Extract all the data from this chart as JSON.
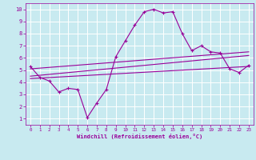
{
  "xlabel": "Windchill (Refroidissement éolien,°C)",
  "bg_color": "#c8eaf0",
  "grid_color": "#ffffff",
  "line_color": "#990099",
  "xlim": [
    -0.5,
    23.5
  ],
  "ylim": [
    0.5,
    10.5
  ],
  "xticks": [
    0,
    1,
    2,
    3,
    4,
    5,
    6,
    7,
    8,
    9,
    10,
    11,
    12,
    13,
    14,
    15,
    16,
    17,
    18,
    19,
    20,
    21,
    22,
    23
  ],
  "yticks": [
    1,
    2,
    3,
    4,
    5,
    6,
    7,
    8,
    9,
    10
  ],
  "series1_x": [
    0,
    1,
    2,
    3,
    4,
    5,
    6,
    7,
    8,
    9,
    10,
    11,
    12,
    13,
    14,
    15,
    16,
    17,
    18,
    19,
    20,
    21,
    22,
    23
  ],
  "series1_y": [
    5.3,
    4.4,
    4.1,
    3.2,
    3.5,
    3.4,
    1.1,
    2.3,
    3.4,
    6.1,
    7.4,
    8.7,
    9.8,
    10.0,
    9.7,
    9.8,
    8.0,
    6.6,
    7.0,
    6.5,
    6.4,
    5.1,
    4.8,
    5.4
  ],
  "series2_x": [
    0,
    23
  ],
  "series2_y": [
    5.1,
    6.5
  ],
  "series3_x": [
    0,
    23
  ],
  "series3_y": [
    4.5,
    6.2
  ],
  "series4_x": [
    0,
    23
  ],
  "series4_y": [
    4.3,
    5.3
  ]
}
